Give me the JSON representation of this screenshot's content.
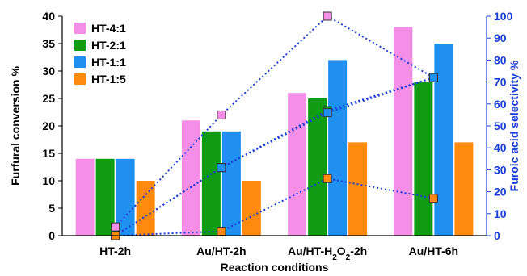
{
  "chart_data": {
    "type": "bar",
    "xlabel": "Reaction conditions",
    "ylabel": "Furfural conversion %",
    "y2label": "Furoic acid selectivity %",
    "ylim": [
      0,
      40
    ],
    "y2lim": [
      0,
      100
    ],
    "yticks": [
      "0",
      "5",
      "10",
      "15",
      "20",
      "25",
      "30",
      "35",
      "40"
    ],
    "y2ticks": [
      "0",
      "10",
      "20",
      "30",
      "40",
      "50",
      "60",
      "70",
      "80",
      "90",
      "100"
    ],
    "categories": [
      {
        "pre": "HT-2h",
        "sub": "",
        "post": ""
      },
      {
        "pre": "Au/HT-2h",
        "sub": "",
        "post": ""
      },
      {
        "pre": "Au/HT-H",
        "sub": "2",
        "mid": "O",
        "sub2": "2",
        "post": "-2h"
      },
      {
        "pre": "Au/HT-6h",
        "sub": "",
        "post": ""
      }
    ],
    "legend_position": "top-left",
    "series": [
      {
        "name": "HT-4:1",
        "color": "#f58ee6",
        "values": [
          14,
          21,
          26,
          38
        ],
        "selectivity": [
          4,
          55,
          100,
          72
        ]
      },
      {
        "name": "HT-2:1",
        "color": "#0f9b12",
        "values": [
          14,
          19,
          25,
          28
        ],
        "selectivity": [
          0,
          31,
          57,
          72
        ]
      },
      {
        "name": "HT-1:1",
        "color": "#1f8ff0",
        "values": [
          14,
          19,
          32,
          35
        ],
        "selectivity": [
          0,
          31,
          56,
          72
        ]
      },
      {
        "name": "HT-1:5",
        "color": "#ff8a0d",
        "values": [
          10,
          10,
          17,
          17
        ],
        "selectivity": [
          0,
          2,
          26,
          17
        ]
      }
    ],
    "selectivity_line_color": "#1a3fd6",
    "right_axis_color": "#1a3fd6"
  }
}
